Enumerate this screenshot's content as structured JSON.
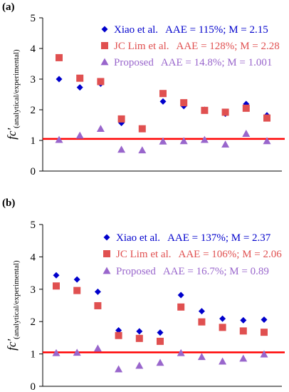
{
  "chart_data": [
    {
      "panel_label": "(a)",
      "type": "scatter",
      "ylabel": "fc'",
      "ylabel_subscript": "(analytical/experimental)",
      "ylim": [
        0,
        5
      ],
      "yticks": [
        "0",
        "1",
        "2",
        "3",
        "4",
        "5"
      ],
      "reference_line": {
        "y": 1.05,
        "color": "#ff0000"
      },
      "x": [
        1,
        2,
        3,
        4,
        5,
        6,
        7,
        8,
        9,
        10,
        11
      ],
      "series": [
        {
          "name": "Xiao et al.",
          "stats": "AAE = 115%; M = 2.15",
          "marker": "diamond",
          "color": "#0000cc",
          "values": [
            3.0,
            2.73,
            2.85,
            1.57,
            null,
            2.27,
            2.12,
            2.0,
            1.87,
            2.19,
            1.82
          ]
        },
        {
          "name": "JC Lim et al.",
          "stats": "AAE = 128%; M = 2.28",
          "marker": "square",
          "color": "#e05050",
          "values": [
            3.7,
            3.03,
            2.92,
            1.7,
            1.38,
            2.53,
            2.23,
            1.98,
            1.92,
            2.05,
            1.73
          ]
        },
        {
          "name": "Proposed",
          "stats": "AAE = 14.8%; M = 1.001",
          "marker": "triangle",
          "color": "#9966cc",
          "values": [
            1.02,
            1.16,
            1.38,
            0.7,
            0.68,
            0.97,
            0.98,
            1.02,
            0.87,
            1.22,
            0.98
          ]
        }
      ]
    },
    {
      "panel_label": "(b)",
      "type": "scatter",
      "ylabel": "fc'",
      "ylabel_subscript": "(analytical/experimental)",
      "ylim": [
        0,
        5
      ],
      "yticks": [
        "0",
        "1",
        "2",
        "3",
        "4",
        "5"
      ],
      "reference_line": {
        "y": 1.05,
        "color": "#ff0000"
      },
      "x": [
        1,
        2,
        3,
        4,
        5,
        6,
        7,
        8,
        9,
        10,
        11
      ],
      "series": [
        {
          "name": "Xiao et al.",
          "stats": "AAE = 137%; M = 2.37",
          "marker": "diamond",
          "color": "#0000cc",
          "values": [
            3.43,
            3.3,
            2.92,
            1.73,
            1.7,
            1.66,
            2.82,
            2.32,
            2.09,
            2.04,
            2.06
          ]
        },
        {
          "name": "JC Lim et al.",
          "stats": "AAE = 106%; M = 2.06",
          "marker": "square",
          "color": "#e05050",
          "values": [
            3.1,
            2.96,
            2.49,
            1.57,
            1.48,
            1.39,
            2.45,
            1.99,
            1.82,
            1.71,
            1.67
          ]
        },
        {
          "name": "Proposed",
          "stats": "AAE = 16.7%; M = 0.89",
          "marker": "triangle",
          "color": "#9966cc",
          "values": [
            1.03,
            1.04,
            1.17,
            0.53,
            0.64,
            0.73,
            1.03,
            0.91,
            0.77,
            0.86,
            0.99
          ]
        }
      ]
    }
  ]
}
